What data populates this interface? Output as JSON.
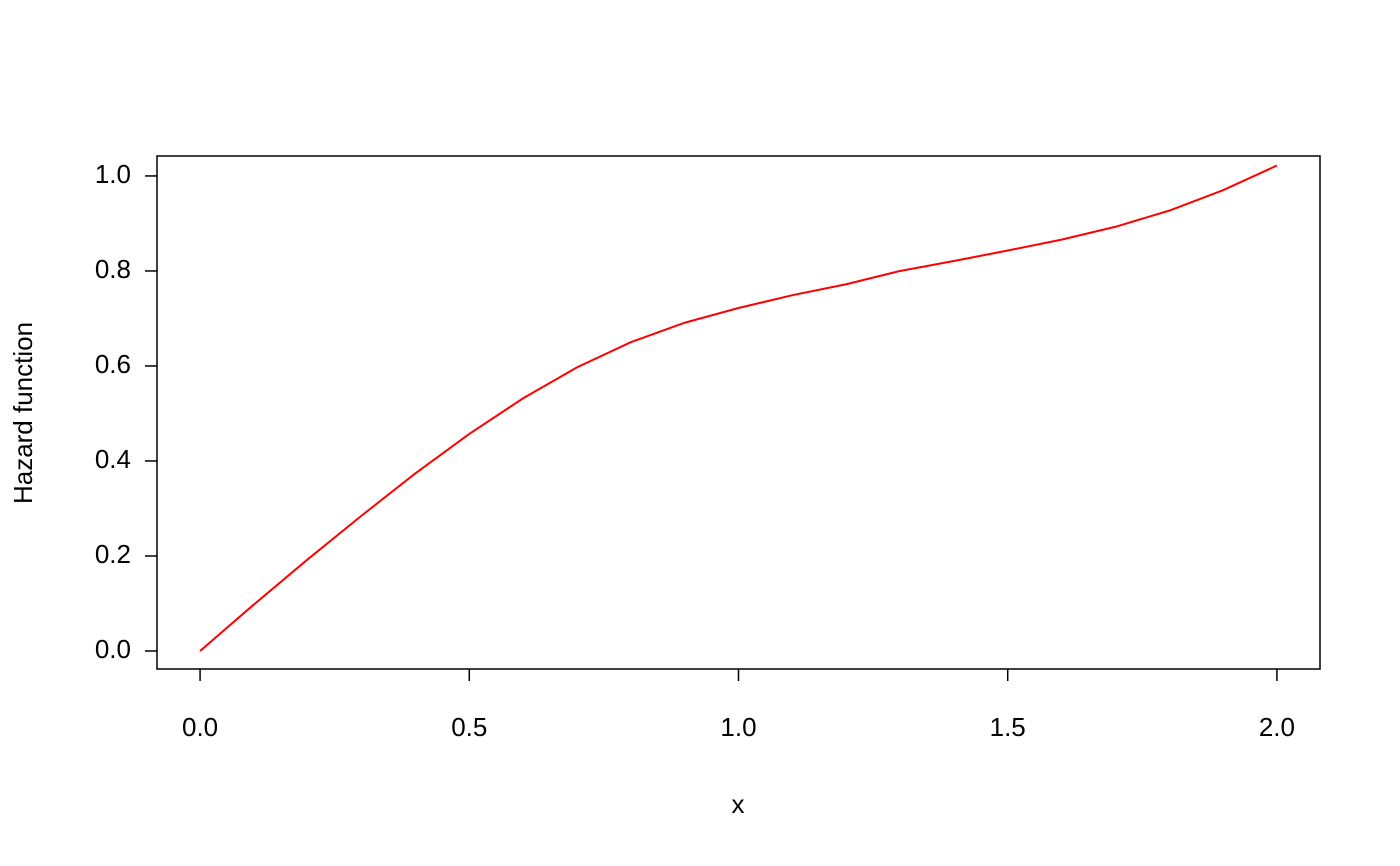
{
  "chart_data": {
    "type": "line",
    "x_label": "x",
    "y_label": "Hazard function",
    "x": [
      0.0,
      0.1,
      0.2,
      0.3,
      0.4,
      0.5,
      0.6,
      0.7,
      0.8,
      0.9,
      1.0,
      1.1,
      1.2,
      1.3,
      1.4,
      1.5,
      1.6,
      1.7,
      1.8,
      1.9,
      2.0
    ],
    "series": [
      {
        "color": "#ff0000",
        "values": [
          0,
          0.098,
          0.193,
          0.285,
          0.374,
          0.457,
          0.532,
          0.597,
          0.65,
          0.691,
          0.722,
          0.749,
          0.772,
          0.8,
          0.821,
          0.843,
          0.866,
          0.893,
          0.927,
          0.97,
          1.022
        ]
      }
    ],
    "xlim": [
      -0.08,
      2.08
    ],
    "ylim": [
      -0.0379,
      1.042
    ],
    "xticks": [
      {
        "value": 0,
        "label": "0.0"
      },
      0.5,
      {
        "value": 1,
        "label": "1.0"
      },
      1.5,
      {
        "value": 2,
        "label": "2.0"
      }
    ],
    "yticks": [
      {
        "value": 0,
        "label": "0.0"
      },
      0.2,
      0.4,
      0.6,
      0.8,
      {
        "value": 1,
        "label": "1.0"
      }
    ]
  }
}
